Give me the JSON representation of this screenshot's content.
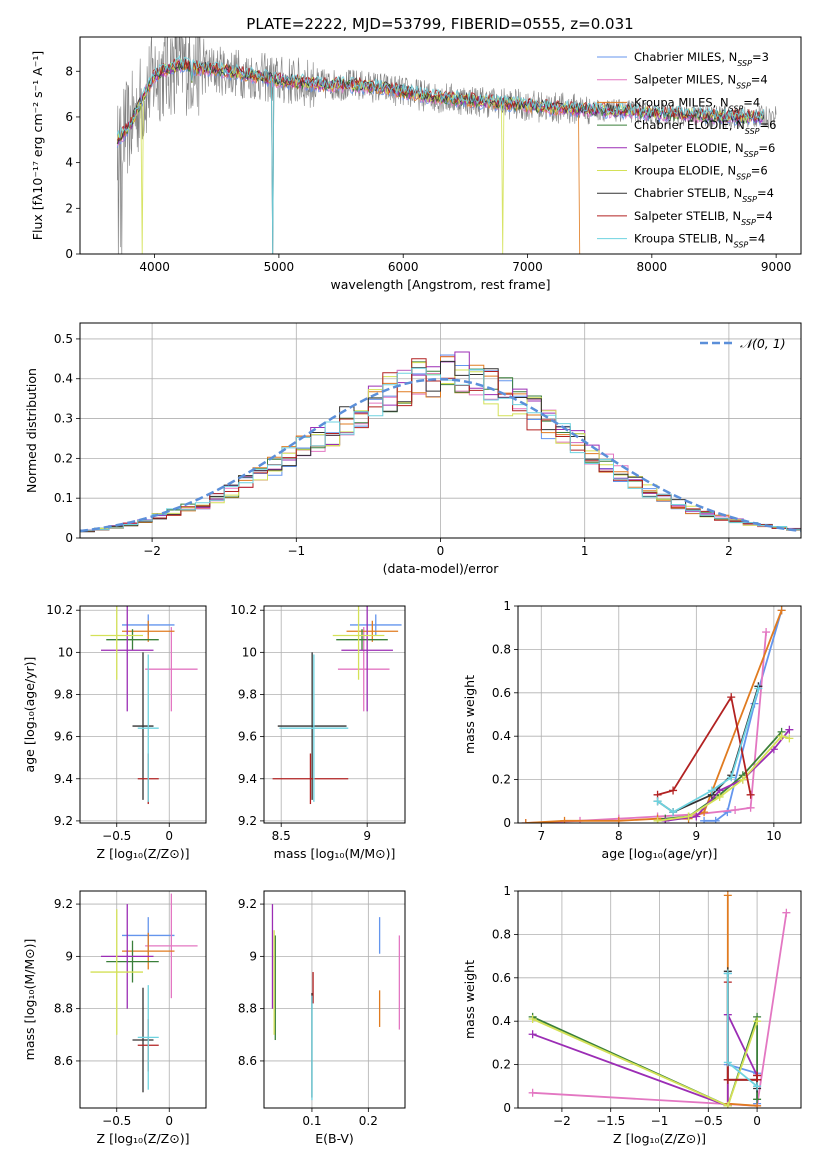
{
  "figure": {
    "title": "PLATE=2222, MJD=53799, FIBERID=0555, z=0.031",
    "colors": {
      "Chabrier MILES": "#6495ED",
      "Salpeter MILES": "#E377C2",
      "Kroupa MILES": "#E07B20",
      "Chabrier ELODIE": "#3A7F3A",
      "Salpeter ELODIE": "#9B2DB5",
      "Kroupa ELODIE": "#D4E157",
      "Chabrier STELIB": "#333333",
      "Salpeter STELIB": "#B22222",
      "Kroupa STELIB": "#6ED3E0",
      "data": "#808080",
      "normal_curve": "#5B8FD9"
    }
  },
  "chart_data": [
    {
      "id": "spectrum",
      "type": "line",
      "xlabel": "wavelength [Angstrom, rest frame]",
      "ylabel": "Flux [fλ10⁻¹⁷ erg cm⁻² s⁻¹ A⁻¹]",
      "xlim": [
        3400,
        9200
      ],
      "ylim": [
        0,
        9.5
      ],
      "xticks": [
        4000,
        5000,
        6000,
        7000,
        8000,
        9000
      ],
      "yticks": [
        0,
        2,
        4,
        6,
        8
      ],
      "legend_position": "top-right",
      "legend": [
        {
          "name": "Chabrier MILES",
          "nssp": "3"
        },
        {
          "name": "Salpeter MILES",
          "nssp": "4"
        },
        {
          "name": "Kroupa MILES",
          "nssp": "4"
        },
        {
          "name": "Chabrier ELODIE",
          "nssp": "6"
        },
        {
          "name": "Salpeter ELODIE",
          "nssp": "6"
        },
        {
          "name": "Kroupa ELODIE",
          "nssp": "6"
        },
        {
          "name": "Chabrier STELIB",
          "nssp": "4"
        },
        {
          "name": "Salpeter STELIB",
          "nssp": "4"
        },
        {
          "name": "Kroupa STELIB",
          "nssp": "4"
        }
      ],
      "continuum": {
        "x": [
          3700,
          3800,
          3900,
          4000,
          4100,
          4200,
          4300,
          4400,
          4600,
          4800,
          5000,
          5200,
          5400,
          5600,
          5800,
          6000,
          6200,
          6400,
          6600,
          6800,
          7000,
          7200,
          7400,
          7600,
          7800,
          8000,
          8200,
          8400,
          8600,
          8800,
          8900
        ],
        "y": [
          5.0,
          5.6,
          6.8,
          7.8,
          8.1,
          8.3,
          8.2,
          8.1,
          8.0,
          7.8,
          7.6,
          7.5,
          7.4,
          7.4,
          7.3,
          7.1,
          6.9,
          6.8,
          6.7,
          6.6,
          6.5,
          6.4,
          6.35,
          6.3,
          6.25,
          6.15,
          6.1,
          6.05,
          6.0,
          6.0,
          6.0
        ]
      }
    },
    {
      "id": "residuals",
      "type": "histogram",
      "xlabel": "(data-model)/error",
      "ylabel": "Normed distribution",
      "xlim": [
        -2.5,
        2.5
      ],
      "ylim": [
        0,
        0.54
      ],
      "xticks": [
        -2,
        -1,
        0,
        1,
        2
      ],
      "yticks": [
        0,
        0.1,
        0.2,
        0.3,
        0.4,
        0.5
      ],
      "grid": true,
      "legend": "𝒩(0, 1)",
      "legend_position": "top-right",
      "bins": {
        "start": -2.5,
        "width": 0.1
      },
      "base_profile": [
        0.018,
        0.022,
        0.028,
        0.035,
        0.045,
        0.055,
        0.065,
        0.075,
        0.085,
        0.1,
        0.118,
        0.14,
        0.16,
        0.18,
        0.205,
        0.225,
        0.245,
        0.265,
        0.29,
        0.315,
        0.34,
        0.365,
        0.385,
        0.4,
        0.41,
        0.415,
        0.41,
        0.395,
        0.375,
        0.355,
        0.335,
        0.315,
        0.29,
        0.265,
        0.24,
        0.215,
        0.19,
        0.165,
        0.14,
        0.118,
        0.1,
        0.085,
        0.07,
        0.06,
        0.05,
        0.042,
        0.035,
        0.03,
        0.026,
        0.022
      ]
    },
    {
      "id": "age-vs-Z",
      "type": "errorbar",
      "xlabel": "Z [log₁₀(Z/Z⊙)]",
      "ylabel": "age  [log₁₀(age/yr)]",
      "xlim": [
        -0.85,
        0.35
      ],
      "ylim": [
        9.19,
        10.22
      ],
      "xticks": [
        -0.5,
        0.0
      ],
      "yticks": [
        9.2,
        9.4,
        9.6,
        9.8,
        10.0,
        10.2
      ],
      "grid": true,
      "points": [
        {
          "model": "Chabrier MILES",
          "x": -0.2,
          "xerr": 0.25,
          "y": 10.13,
          "yerr": 0.05
        },
        {
          "model": "Salpeter MILES",
          "x": 0.02,
          "xerr": 0.25,
          "y": 9.92,
          "yerr": 0.2
        },
        {
          "model": "Kroupa MILES",
          "x": -0.2,
          "xerr": 0.25,
          "y": 10.1,
          "yerr": 0.05
        },
        {
          "model": "Chabrier ELODIE",
          "x": -0.35,
          "xerr": 0.25,
          "y": 10.06,
          "yerr": 0.05
        },
        {
          "model": "Salpeter ELODIE",
          "x": -0.4,
          "xerr": 0.25,
          "y": 10.01,
          "yerr": 0.29
        },
        {
          "model": "Kroupa ELODIE",
          "x": -0.5,
          "xerr": 0.25,
          "y": 10.08,
          "yerr": 0.21
        },
        {
          "model": "Chabrier STELIB",
          "x": -0.25,
          "xerr": 0.1,
          "y": 9.65,
          "yerr": 0.35
        },
        {
          "model": "Salpeter STELIB",
          "x": -0.2,
          "xerr": 0.1,
          "y": 9.4,
          "yerr": 0.12
        },
        {
          "model": "Kroupa STELIB",
          "x": -0.2,
          "xerr": 0.1,
          "y": 9.64,
          "yerr": 0.35
        }
      ]
    },
    {
      "id": "age-vs-mass",
      "type": "errorbar",
      "xlabel": "mass [log₁₀(M/M⊙)]",
      "ylabel": "",
      "xlim": [
        8.4,
        9.22
      ],
      "ylim": [
        9.19,
        10.22
      ],
      "xticks": [
        8.5,
        9.0
      ],
      "yticks": [
        9.2,
        9.4,
        9.6,
        9.8,
        10.0,
        10.2
      ],
      "grid": true,
      "points": [
        {
          "model": "Chabrier MILES",
          "x": 9.05,
          "xerr": 0.15,
          "y": 10.13,
          "yerr": 0.05
        },
        {
          "model": "Salpeter MILES",
          "x": 8.98,
          "xerr": 0.15,
          "y": 9.92,
          "yerr": 0.2
        },
        {
          "model": "Kroupa MILES",
          "x": 9.03,
          "xerr": 0.15,
          "y": 10.1,
          "yerr": 0.05
        },
        {
          "model": "Chabrier ELODIE",
          "x": 8.97,
          "xerr": 0.15,
          "y": 10.06,
          "yerr": 0.05
        },
        {
          "model": "Salpeter ELODIE",
          "x": 9.0,
          "xerr": 0.15,
          "y": 10.01,
          "yerr": 0.29
        },
        {
          "model": "Kroupa ELODIE",
          "x": 8.95,
          "xerr": 0.15,
          "y": 10.08,
          "yerr": 0.21
        },
        {
          "model": "Chabrier STELIB",
          "x": 8.68,
          "xerr": 0.2,
          "y": 9.65,
          "yerr": 0.35
        },
        {
          "model": "Salpeter STELIB",
          "x": 8.67,
          "xerr": 0.22,
          "y": 9.4,
          "yerr": 0.12
        },
        {
          "model": "Kroupa STELIB",
          "x": 8.69,
          "xerr": 0.2,
          "y": 9.64,
          "yerr": 0.35
        }
      ]
    },
    {
      "id": "massweight-vs-age",
      "type": "line",
      "xlabel": "age  [log₁₀(age/yr)]",
      "ylabel": "mass weight",
      "xlim": [
        6.7,
        10.35
      ],
      "ylim": [
        0,
        1.0
      ],
      "xticks": [
        7,
        8,
        9,
        10
      ],
      "yticks": [
        0.0,
        0.2,
        0.4,
        0.6,
        0.8,
        1.0
      ],
      "grid": true,
      "series": [
        {
          "model": "Chabrier MILES",
          "x": [
            9.1,
            9.25,
            9.4,
            9.75,
            10.1
          ],
          "y": [
            0.01,
            0.01,
            0.05,
            0.55,
            0.98
          ]
        },
        {
          "model": "Salpeter MILES",
          "x": [
            6.8,
            7.5,
            8.0,
            8.5,
            9.0,
            9.5,
            9.7,
            9.9
          ],
          "y": [
            0.0,
            0.01,
            0.02,
            0.03,
            0.04,
            0.06,
            0.07,
            0.88
          ]
        },
        {
          "model": "Kroupa MILES",
          "x": [
            6.8,
            7.3,
            8.0,
            8.5,
            8.9,
            9.1,
            10.1
          ],
          "y": [
            0.0,
            0.01,
            0.01,
            0.02,
            0.02,
            0.05,
            0.98
          ]
        },
        {
          "model": "Chabrier ELODIE",
          "x": [
            8.6,
            8.9,
            9.3,
            9.6,
            10.1
          ],
          "y": [
            0.02,
            0.03,
            0.13,
            0.22,
            0.42
          ]
        },
        {
          "model": "Salpeter ELODIE",
          "x": [
            8.6,
            9.0,
            9.3,
            9.6,
            10.0,
            10.2
          ],
          "y": [
            0.01,
            0.03,
            0.15,
            0.2,
            0.34,
            0.43
          ]
        },
        {
          "model": "Kroupa ELODIE",
          "x": [
            8.5,
            8.9,
            9.3,
            9.6,
            10.1,
            10.2
          ],
          "y": [
            0.01,
            0.03,
            0.12,
            0.2,
            0.4,
            0.39
          ]
        },
        {
          "model": "Chabrier STELIB",
          "x": [
            8.5,
            8.7,
            9.2,
            9.45,
            9.8
          ],
          "y": [
            0.1,
            0.05,
            0.13,
            0.22,
            0.63
          ]
        },
        {
          "model": "Salpeter STELIB",
          "x": [
            8.5,
            8.7,
            9.45,
            9.7
          ],
          "y": [
            0.13,
            0.15,
            0.58,
            0.13
          ]
        },
        {
          "model": "Kroupa STELIB",
          "x": [
            8.5,
            8.7,
            9.2,
            9.45,
            9.8
          ],
          "y": [
            0.1,
            0.05,
            0.15,
            0.21,
            0.62
          ]
        }
      ]
    },
    {
      "id": "mass-vs-Z",
      "type": "errorbar",
      "xlabel": "Z [log₁₀(Z/Z⊙)]",
      "ylabel": "mass [log₁₀(M/M⊙)]",
      "xlim": [
        -0.85,
        0.35
      ],
      "ylim": [
        8.42,
        9.25
      ],
      "xticks": [
        -0.5,
        0.0
      ],
      "yticks": [
        8.6,
        8.8,
        9.0,
        9.2
      ],
      "grid": true,
      "points": [
        {
          "model": "Chabrier MILES",
          "x": -0.2,
          "xerr": 0.25,
          "y": 9.08,
          "yerr": 0.07
        },
        {
          "model": "Salpeter MILES",
          "x": 0.02,
          "xerr": 0.25,
          "y": 9.04,
          "yerr": 0.2
        },
        {
          "model": "Kroupa MILES",
          "x": -0.2,
          "xerr": 0.25,
          "y": 9.02,
          "yerr": 0.07
        },
        {
          "model": "Chabrier ELODIE",
          "x": -0.35,
          "xerr": 0.25,
          "y": 8.98,
          "yerr": 0.08
        },
        {
          "model": "Salpeter ELODIE",
          "x": -0.4,
          "xerr": 0.25,
          "y": 9.0,
          "yerr": 0.2
        },
        {
          "model": "Kroupa ELODIE",
          "x": -0.5,
          "xerr": 0.25,
          "y": 8.94,
          "yerr": 0.24
        },
        {
          "model": "Chabrier STELIB",
          "x": -0.25,
          "xerr": 0.1,
          "y": 8.68,
          "yerr": 0.2
        },
        {
          "model": "Salpeter STELIB",
          "x": -0.2,
          "xerr": 0.1,
          "y": 8.66,
          "yerr": 0.1
        },
        {
          "model": "Kroupa STELIB",
          "x": -0.2,
          "xerr": 0.1,
          "y": 8.69,
          "yerr": 0.2
        }
      ]
    },
    {
      "id": "mass-vs-EBV",
      "type": "errorbar",
      "xlabel": "E(B-V)",
      "ylabel": "",
      "xlim": [
        0.015,
        0.265
      ],
      "ylim": [
        8.42,
        9.25
      ],
      "xticks": [
        0.1,
        0.2
      ],
      "yticks": [
        8.6,
        8.8,
        9.0,
        9.2
      ],
      "grid": true,
      "points": [
        {
          "model": "Chabrier MILES",
          "x": 0.22,
          "y": 9.08,
          "yerr": 0.07
        },
        {
          "model": "Salpeter MILES",
          "x": 0.255,
          "y": 8.9,
          "yerr": 0.18
        },
        {
          "model": "Kroupa MILES",
          "x": 0.22,
          "y": 8.8,
          "yerr": 0.07
        },
        {
          "model": "Chabrier ELODIE",
          "x": 0.035,
          "y": 8.88,
          "yerr": 0.2
        },
        {
          "model": "Salpeter ELODIE",
          "x": 0.03,
          "y": 9.0,
          "yerr": 0.2
        },
        {
          "model": "Kroupa ELODIE",
          "x": 0.033,
          "y": 8.9,
          "yerr": 0.2
        },
        {
          "model": "Chabrier STELIB",
          "x": 0.1,
          "y": 8.66,
          "yerr": 0.2
        },
        {
          "model": "Salpeter STELIB",
          "x": 0.102,
          "y": 8.88,
          "yerr": 0.06
        },
        {
          "model": "Kroupa STELIB",
          "x": 0.1,
          "y": 8.65,
          "yerr": 0.2
        }
      ]
    },
    {
      "id": "massweight-vs-Z",
      "type": "line",
      "xlabel": "Z [log₁₀(Z/Z⊙)]",
      "ylabel": "mass weight",
      "xlim": [
        -2.45,
        0.45
      ],
      "ylim": [
        0,
        1.0
      ],
      "xticks": [
        -2.0,
        -1.5,
        -1.0,
        -0.5,
        0.0
      ],
      "yticks": [
        0.0,
        0.2,
        0.4,
        0.6,
        0.8,
        1.0
      ],
      "grid": true,
      "series": [
        {
          "model": "Chabrier MILES",
          "x": [
            -0.3,
            -0.3,
            0.0,
            0.0
          ],
          "y": [
            0.62,
            0.2,
            0.16,
            0.02
          ]
        },
        {
          "model": "Salpeter MILES",
          "x": [
            -2.3,
            0.0,
            0.3
          ],
          "y": [
            0.07,
            0.01,
            0.9
          ]
        },
        {
          "model": "Kroupa MILES",
          "x": [
            -0.3,
            -0.3,
            0.0
          ],
          "y": [
            0.98,
            0.02,
            0.01
          ]
        },
        {
          "model": "Chabrier ELODIE",
          "x": [
            -2.3,
            -0.3,
            0.0,
            0.0
          ],
          "y": [
            0.42,
            0.01,
            0.42,
            0.04
          ]
        },
        {
          "model": "Salpeter ELODIE",
          "x": [
            -2.3,
            -0.3,
            -0.3,
            0.0
          ],
          "y": [
            0.34,
            0.01,
            0.43,
            0.15
          ]
        },
        {
          "model": "Kroupa ELODIE",
          "x": [
            -2.3,
            -0.3,
            0.0
          ],
          "y": [
            0.41,
            0.01,
            0.4
          ]
        },
        {
          "model": "Chabrier STELIB",
          "x": [
            -0.3,
            -0.3,
            0.0,
            0.0
          ],
          "y": [
            0.63,
            0.13,
            0.13,
            0.09
          ]
        },
        {
          "model": "Salpeter STELIB",
          "x": [
            -0.3,
            -0.3,
            0.0,
            0.0
          ],
          "y": [
            0.58,
            0.13,
            0.13,
            0.15
          ]
        },
        {
          "model": "Kroupa STELIB",
          "x": [
            -0.3,
            -0.3,
            0.0,
            0.0
          ],
          "y": [
            0.62,
            0.21,
            0.1,
            0.1
          ]
        }
      ]
    }
  ]
}
